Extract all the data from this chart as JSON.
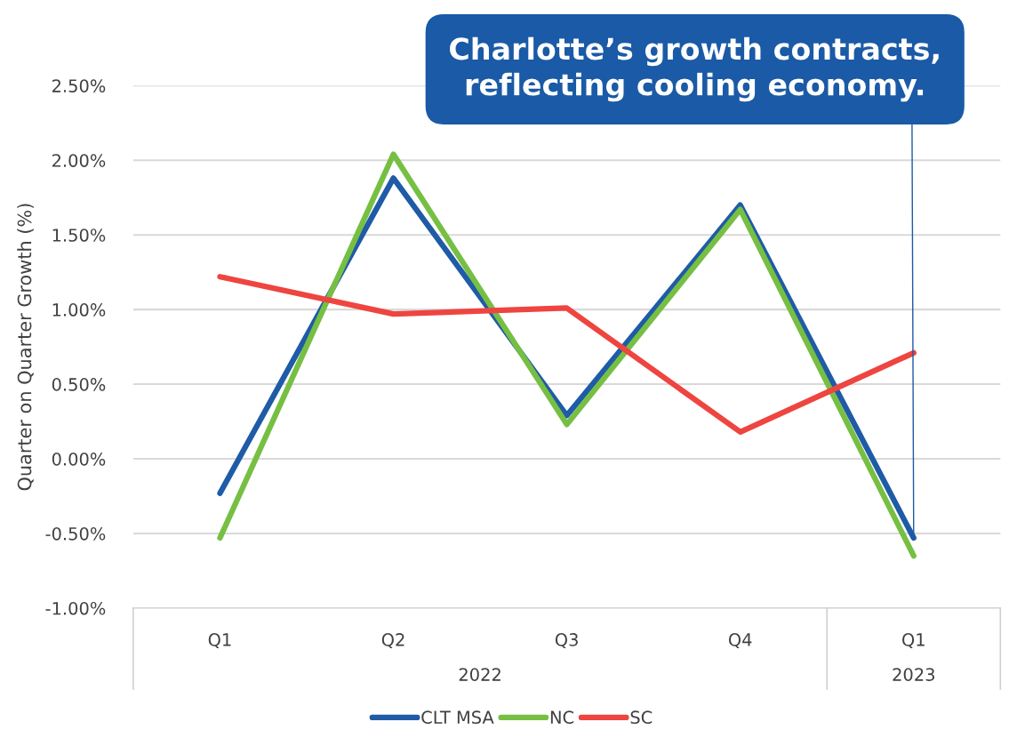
{
  "chart_data": {
    "type": "line",
    "ylabel": "Quarter on Quarter Growth (%)",
    "categories": [
      "Q1",
      "Q2",
      "Q3",
      "Q4",
      "Q1"
    ],
    "series": [
      {
        "name": "CLT MSA",
        "color": "#1f5ba6",
        "values": [
          -0.23,
          1.88,
          0.29,
          1.7,
          -0.53
        ]
      },
      {
        "name": "NC",
        "color": "#76bf43",
        "values": [
          -0.53,
          2.04,
          0.23,
          1.67,
          -0.65
        ]
      },
      {
        "name": "SC",
        "color": "#ee4540",
        "values": [
          1.22,
          0.97,
          1.01,
          0.18,
          0.71
        ]
      }
    ],
    "ylim": [
      -1.0,
      2.5
    ],
    "yticks": [
      {
        "value": -1.0,
        "label": "-1.00%"
      },
      {
        "value": -0.5,
        "label": "-0.50%"
      },
      {
        "value": 0.0,
        "label": "0.00%"
      },
      {
        "value": 0.5,
        "label": "0.50%"
      },
      {
        "value": 1.0,
        "label": "1.00%"
      },
      {
        "value": 1.5,
        "label": "1.50%"
      },
      {
        "value": 2.0,
        "label": "2.00%"
      },
      {
        "value": 2.5,
        "label": "2.50%"
      }
    ],
    "annotations": [
      "Charlotte’s growth contracts,\nreflecting cooling economy.",
      "2022",
      "2023"
    ],
    "grid": "y",
    "legend": "bottom",
    "marker": "none",
    "line_style": "solid"
  }
}
